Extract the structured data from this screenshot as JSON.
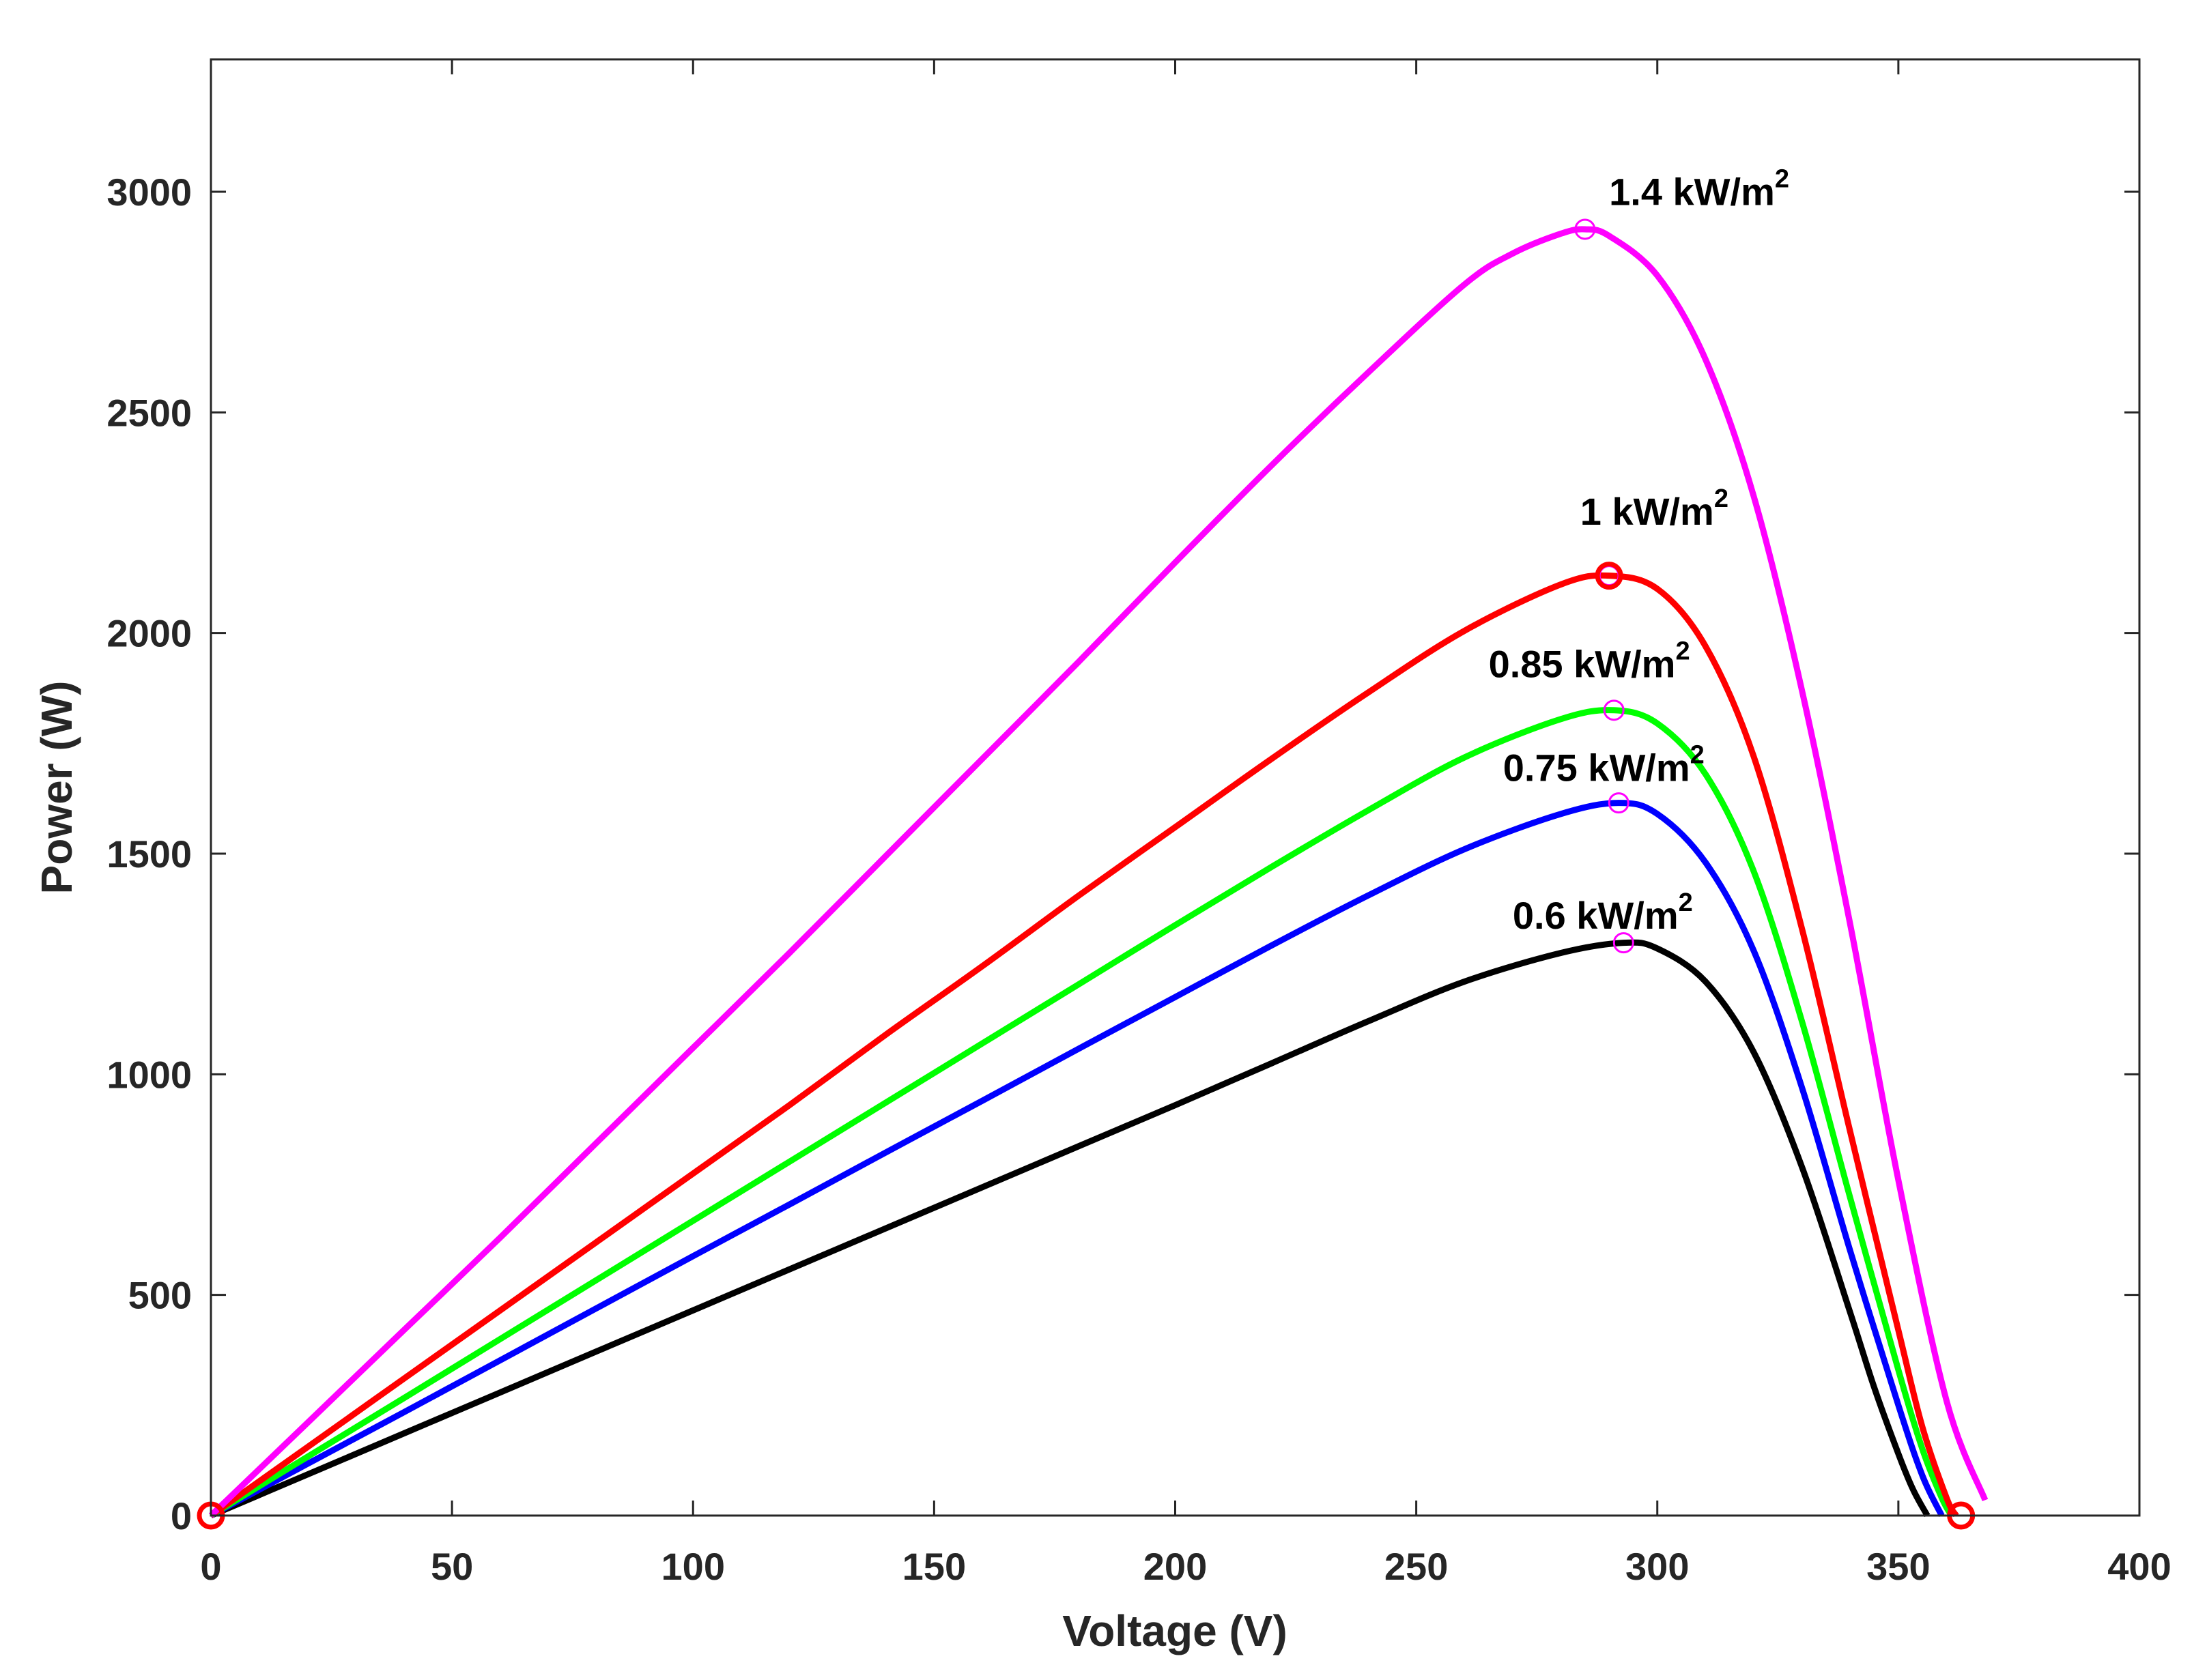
{
  "chart_data": {
    "type": "line",
    "title": "",
    "xlabel": "Voltage (V)",
    "ylabel": "Power (W)",
    "xlim": [
      0,
      400
    ],
    "ylim": [
      0,
      3200
    ],
    "xticks": [
      0,
      50,
      100,
      150,
      200,
      250,
      300,
      350,
      400
    ],
    "xtick_labels": [
      "0",
      "50",
      "100",
      "150",
      "200",
      "250",
      "300",
      "350",
      "400"
    ],
    "yticks": [
      0,
      500,
      1000,
      1500,
      2000,
      2500,
      3000
    ],
    "ytick_labels": [
      "0",
      "500",
      "1000",
      "1500",
      "2000",
      "2500",
      "3000"
    ],
    "grid": false,
    "series": [
      {
        "name": "1.4 kW/m2",
        "label_main": "1.4 kW/m",
        "label_sup": "2",
        "color": "#ff00ff",
        "x": [
          0,
          20,
          40,
          60,
          80,
          100,
          120,
          140,
          160,
          180,
          200,
          220,
          240,
          260,
          270,
          280,
          285,
          290,
          300,
          310,
          320,
          330,
          340,
          350,
          360,
          368
        ],
        "y": [
          0,
          210,
          420,
          630,
          845,
          1060,
          1275,
          1495,
          1715,
          1935,
          2160,
          2380,
          2590,
          2790,
          2860,
          2905,
          2915,
          2900,
          2810,
          2620,
          2310,
          1870,
          1340,
          760,
          260,
          35
        ],
        "mpp": {
          "x": 285,
          "y": 2915
        },
        "label_anchor": {
          "x": 290,
          "y": 2970
        }
      },
      {
        "name": "1 kW/m2",
        "label_main": "1 kW/m",
        "label_sup": "2",
        "color": "#ff0000",
        "x": [
          0,
          20,
          40,
          60,
          80,
          100,
          120,
          140,
          160,
          180,
          200,
          220,
          240,
          260,
          280,
          290,
          300,
          310,
          320,
          330,
          340,
          350,
          355,
          360,
          362
        ],
        "y": [
          0,
          155,
          310,
          465,
          620,
          775,
          930,
          1090,
          1245,
          1405,
          1560,
          1715,
          1865,
          2005,
          2110,
          2130,
          2100,
          1970,
          1720,
          1330,
          870,
          420,
          200,
          40,
          0
        ],
        "mpp": {
          "x": 290,
          "y": 2130
        },
        "label_anchor": {
          "x": 284,
          "y": 2245
        }
      },
      {
        "name": "0.85 kW/m2",
        "label_main": "0.85 kW/m",
        "label_sup": "2",
        "color": "#00ff00",
        "x": [
          0,
          20,
          40,
          60,
          80,
          100,
          120,
          140,
          160,
          180,
          200,
          220,
          240,
          260,
          280,
          291,
          300,
          310,
          320,
          330,
          340,
          350,
          355,
          359,
          361
        ],
        "y": [
          0,
          133,
          266,
          400,
          534,
          668,
          802,
          936,
          1070,
          1204,
          1338,
          1470,
          1598,
          1718,
          1805,
          1825,
          1795,
          1680,
          1460,
          1120,
          720,
          330,
          150,
          40,
          0
        ],
        "mpp": {
          "x": 291,
          "y": 1825
        },
        "label_anchor": {
          "x": 265,
          "y": 1900
        }
      },
      {
        "name": "0.75 kW/m2",
        "label_main": "0.75 kW/m",
        "label_sup": "2",
        "color": "#0000ff",
        "x": [
          0,
          20,
          40,
          60,
          80,
          100,
          120,
          140,
          160,
          180,
          200,
          220,
          240,
          260,
          280,
          292,
          300,
          310,
          320,
          330,
          340,
          350,
          355,
          359
        ],
        "y": [
          0,
          117,
          234,
          352,
          470,
          588,
          705,
          823,
          940,
          1058,
          1175,
          1292,
          1405,
          1510,
          1590,
          1615,
          1590,
          1480,
          1280,
          970,
          600,
          250,
          90,
          0
        ],
        "mpp": {
          "x": 292,
          "y": 1615
        },
        "label_anchor": {
          "x": 268,
          "y": 1665
        }
      },
      {
        "name": "0.6 kW/m2",
        "label_main": "0.6 kW/m",
        "label_sup": "2",
        "color": "#000000",
        "x": [
          0,
          20,
          40,
          60,
          80,
          100,
          120,
          140,
          160,
          180,
          200,
          220,
          240,
          260,
          280,
          293,
          300,
          310,
          320,
          330,
          340,
          345,
          350,
          353,
          356
        ],
        "y": [
          0,
          93,
          186,
          279,
          372,
          465,
          558,
          651,
          744,
          837,
          930,
          1025,
          1120,
          1210,
          1275,
          1298,
          1285,
          1210,
          1050,
          790,
          460,
          290,
          140,
          60,
          0
        ],
        "mpp": {
          "x": 293,
          "y": 1298
        },
        "label_anchor": {
          "x": 270,
          "y": 1330
        }
      }
    ],
    "markers": [
      {
        "name": "origin-marker",
        "x": 0,
        "y": 0,
        "color": "#ff0000",
        "size": "large"
      },
      {
        "name": "voc-marker",
        "x": 363,
        "y": 0,
        "color": "#ff0000",
        "size": "large"
      },
      {
        "name": "mpp-1kw-marker",
        "x": 290,
        "y": 2130,
        "color": "#ff0000",
        "size": "large"
      }
    ]
  }
}
